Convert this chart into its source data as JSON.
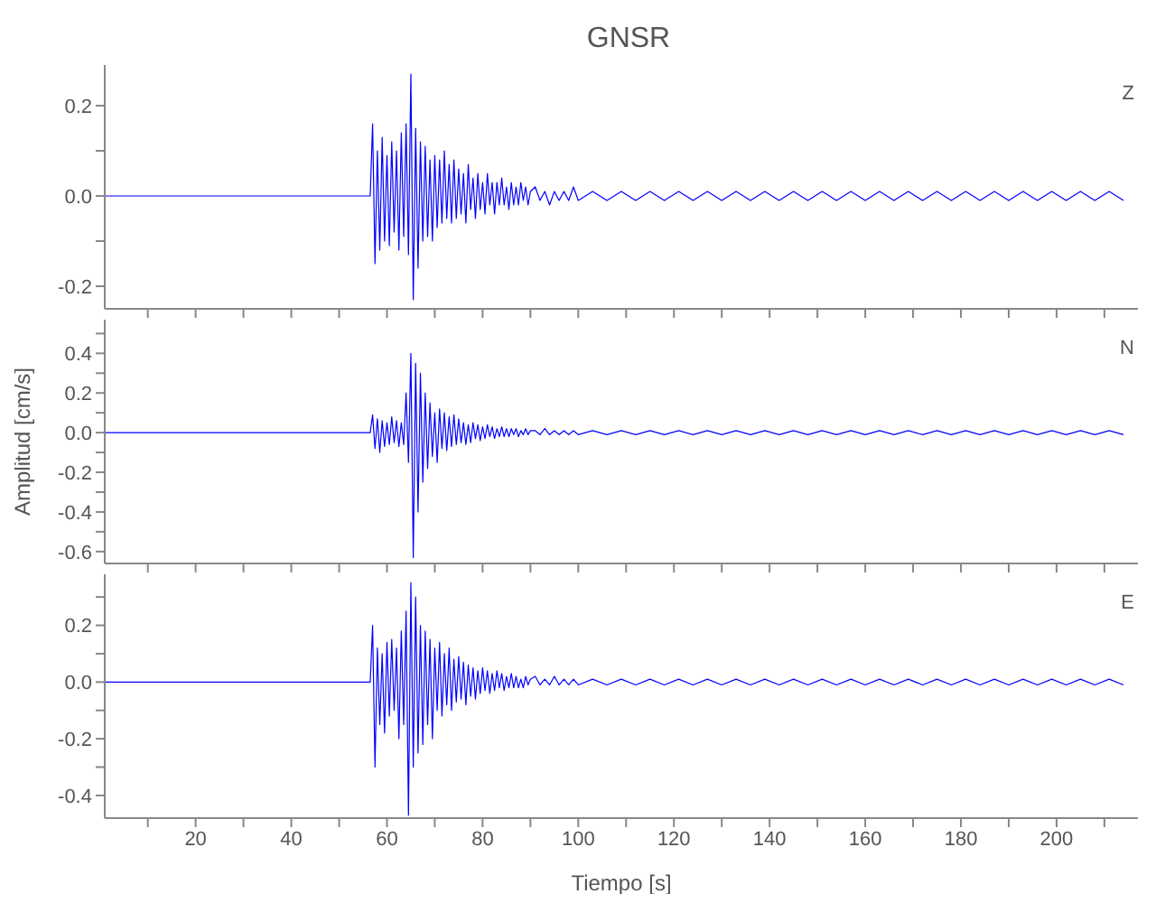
{
  "chart_data": [
    {
      "type": "line",
      "title": "GNSR",
      "annotations": [
        "Z"
      ],
      "tick_labels": "y",
      "marker": "none",
      "line_style": "solid",
      "x": [
        1,
        10,
        20,
        30,
        40,
        50,
        56.5,
        57,
        57.5,
        58,
        58.5,
        59,
        59.5,
        60,
        60.5,
        61,
        61.5,
        62,
        62.5,
        63,
        63.5,
        64,
        64.5,
        65,
        65.5,
        66,
        66.5,
        67,
        67.5,
        68,
        68.5,
        69,
        69.5,
        70,
        70.5,
        71,
        71.5,
        72,
        72.5,
        73,
        73.5,
        74,
        74.5,
        75,
        75.5,
        76,
        76.5,
        77,
        77.5,
        78,
        78.5,
        79,
        79.5,
        80,
        80.5,
        81,
        81.5,
        82,
        82.5,
        83,
        83.5,
        84,
        84.5,
        85,
        85.5,
        86,
        86.5,
        87,
        87.5,
        88,
        88.5,
        89,
        89.5,
        90,
        91,
        92,
        93,
        94,
        95,
        96,
        97,
        98,
        99,
        100,
        103,
        106,
        109,
        112,
        115,
        118,
        121,
        124,
        127,
        130,
        133,
        136,
        139,
        142,
        145,
        148,
        151,
        154,
        157,
        160,
        163,
        166,
        169,
        172,
        175,
        178,
        181,
        184,
        187,
        190,
        193,
        196,
        199,
        202,
        205,
        208,
        211,
        214
      ],
      "series": [
        {
          "color": "#0000ff",
          "values": [
            0,
            0,
            0,
            0,
            0,
            0,
            0,
            0.16,
            -0.15,
            0.1,
            -0.12,
            0.13,
            -0.1,
            0.09,
            -0.11,
            0.12,
            -0.08,
            0.1,
            -0.12,
            0.14,
            -0.09,
            0.16,
            -0.13,
            0.27,
            -0.23,
            0.15,
            -0.16,
            0.12,
            -0.1,
            0.11,
            -0.09,
            0.08,
            -0.1,
            0.09,
            -0.07,
            0.08,
            -0.06,
            0.1,
            -0.05,
            0.07,
            -0.06,
            0.08,
            -0.05,
            0.06,
            -0.04,
            0.05,
            -0.06,
            0.07,
            -0.03,
            0.04,
            -0.05,
            0.05,
            -0.03,
            0.03,
            -0.04,
            0.05,
            -0.02,
            0.03,
            -0.04,
            0.03,
            -0.02,
            0.04,
            -0.02,
            0.02,
            -0.03,
            0.03,
            -0.02,
            0.02,
            -0.02,
            0.03,
            -0.01,
            0.02,
            -0.02,
            0.01,
            0.02,
            -0.01,
            0.01,
            -0.02,
            0.01,
            -0.01,
            0.01,
            -0.01,
            0.02,
            -0.01,
            0.01,
            -0.01,
            0.01,
            -0.01,
            0.01,
            -0.01,
            0.01,
            -0.01,
            0.01,
            -0.01,
            0.01,
            -0.01,
            0.01,
            -0.01,
            0.01,
            -0.01,
            0.01,
            -0.01,
            0.01,
            -0.01,
            0.01,
            -0.01,
            0.01,
            -0.01,
            0.01,
            -0.01,
            0.01,
            -0.01,
            0.01,
            -0.01,
            0.01,
            -0.01,
            0.01,
            -0.01,
            0.01,
            -0.01,
            0.01,
            -0.01
          ]
        }
      ],
      "xlim": [
        1,
        217
      ],
      "xticks": [
        {
          "value": 10,
          "label": null
        },
        20,
        {
          "value": 30,
          "label": null
        },
        40,
        {
          "value": 50,
          "label": null
        },
        60,
        {
          "value": 70,
          "label": null
        },
        80,
        {
          "value": 90,
          "label": null
        },
        100,
        {
          "value": 110,
          "label": null
        },
        120,
        {
          "value": 130,
          "label": null
        },
        140,
        {
          "value": 150,
          "label": null
        },
        160,
        {
          "value": 170,
          "label": null
        },
        180,
        {
          "value": 190,
          "label": null
        },
        200,
        {
          "value": 210,
          "label": null
        }
      ],
      "ylim": [
        -0.25,
        0.29
      ],
      "yticks": [
        -0.2,
        {
          "value": -0.1,
          "label": null
        },
        {
          "value": 0,
          "label": "0.0"
        },
        {
          "value": 0.1,
          "label": null
        },
        0.2
      ]
    },
    {
      "type": "line",
      "ylabel": "Amplitud [cm/s]",
      "annotations": [
        "N"
      ],
      "tick_labels": "y",
      "marker": "none",
      "line_style": "solid",
      "x": [
        1,
        10,
        20,
        30,
        40,
        50,
        56.5,
        57,
        57.5,
        58,
        58.5,
        59,
        59.5,
        60,
        60.5,
        61,
        61.5,
        62,
        62.5,
        63,
        63.5,
        64,
        64.5,
        65,
        65.5,
        66,
        66.5,
        67,
        67.5,
        68,
        68.5,
        69,
        69.5,
        70,
        70.5,
        71,
        71.5,
        72,
        72.5,
        73,
        73.5,
        74,
        74.5,
        75,
        75.5,
        76,
        76.5,
        77,
        77.5,
        78,
        78.5,
        79,
        79.5,
        80,
        80.5,
        81,
        81.5,
        82,
        82.5,
        83,
        83.5,
        84,
        84.5,
        85,
        85.5,
        86,
        86.5,
        87,
        87.5,
        88,
        88.5,
        89,
        89.5,
        90,
        91,
        92,
        93,
        94,
        95,
        96,
        97,
        98,
        99,
        100,
        103,
        106,
        109,
        112,
        115,
        118,
        121,
        124,
        127,
        130,
        133,
        136,
        139,
        142,
        145,
        148,
        151,
        154,
        157,
        160,
        163,
        166,
        169,
        172,
        175,
        178,
        181,
        184,
        187,
        190,
        193,
        196,
        199,
        202,
        205,
        208,
        211,
        214
      ],
      "series": [
        {
          "color": "#0000ff",
          "values": [
            0,
            0,
            0,
            0,
            0,
            0,
            0,
            0.09,
            -0.08,
            0.07,
            -0.1,
            0.06,
            -0.07,
            0.05,
            -0.06,
            0.08,
            -0.05,
            0.06,
            -0.07,
            0.05,
            -0.06,
            0.2,
            -0.15,
            0.4,
            -0.63,
            0.35,
            -0.4,
            0.3,
            -0.25,
            0.2,
            -0.18,
            0.15,
            -0.12,
            0.1,
            -0.15,
            0.12,
            -0.08,
            0.1,
            -0.09,
            0.08,
            -0.07,
            0.09,
            -0.06,
            0.07,
            -0.05,
            0.05,
            -0.06,
            0.04,
            -0.05,
            0.05,
            -0.03,
            0.04,
            -0.04,
            0.03,
            -0.03,
            0.04,
            -0.02,
            0.03,
            -0.03,
            0.02,
            -0.02,
            0.03,
            -0.02,
            0.02,
            -0.02,
            0.02,
            -0.01,
            0.02,
            -0.02,
            0.01,
            -0.01,
            0.02,
            -0.01,
            0.01,
            0.01,
            -0.01,
            0.02,
            -0.01,
            0.01,
            -0.01,
            0.01,
            -0.01,
            0.01,
            -0.01,
            0.01,
            -0.01,
            0.01,
            -0.01,
            0.01,
            -0.01,
            0.01,
            -0.01,
            0.01,
            -0.01,
            0.01,
            -0.01,
            0.01,
            -0.01,
            0.01,
            -0.01,
            0.01,
            -0.01,
            0.01,
            -0.01,
            0.01,
            -0.01,
            0.01,
            -0.01,
            0.01,
            -0.01,
            0.01,
            -0.01,
            0.01,
            -0.01,
            0.01,
            -0.01,
            0.01,
            -0.01,
            0.01,
            -0.01,
            0.01,
            -0.01
          ]
        }
      ],
      "xlim": [
        1,
        217
      ],
      "xticks": [
        {
          "value": 10,
          "label": null
        },
        20,
        {
          "value": 30,
          "label": null
        },
        40,
        {
          "value": 50,
          "label": null
        },
        60,
        {
          "value": 70,
          "label": null
        },
        80,
        {
          "value": 90,
          "label": null
        },
        100,
        {
          "value": 110,
          "label": null
        },
        120,
        {
          "value": 130,
          "label": null
        },
        140,
        {
          "value": 150,
          "label": null
        },
        160,
        {
          "value": 170,
          "label": null
        },
        180,
        {
          "value": 190,
          "label": null
        },
        200,
        {
          "value": 210,
          "label": null
        }
      ],
      "ylim": [
        -0.66,
        0.57
      ],
      "yticks": [
        -0.6,
        {
          "value": -0.5,
          "label": null
        },
        -0.4,
        {
          "value": -0.3,
          "label": null
        },
        -0.2,
        {
          "value": -0.1,
          "label": null
        },
        {
          "value": 0,
          "label": "0.0"
        },
        {
          "value": 0.1,
          "label": null
        },
        0.2,
        {
          "value": 0.3,
          "label": null
        },
        0.4,
        {
          "value": 0.5,
          "label": null
        }
      ]
    },
    {
      "type": "line",
      "xlabel": "Tiempo [s]",
      "annotations": [
        "E"
      ],
      "marker": "none",
      "line_style": "solid",
      "x": [
        1,
        10,
        20,
        30,
        40,
        50,
        56.5,
        57,
        57.5,
        58,
        58.5,
        59,
        59.5,
        60,
        60.5,
        61,
        61.5,
        62,
        62.5,
        63,
        63.5,
        64,
        64.5,
        65,
        65.5,
        66,
        66.5,
        67,
        67.5,
        68,
        68.5,
        69,
        69.5,
        70,
        70.5,
        71,
        71.5,
        72,
        72.5,
        73,
        73.5,
        74,
        74.5,
        75,
        75.5,
        76,
        76.5,
        77,
        77.5,
        78,
        78.5,
        79,
        79.5,
        80,
        80.5,
        81,
        81.5,
        82,
        82.5,
        83,
        83.5,
        84,
        84.5,
        85,
        85.5,
        86,
        86.5,
        87,
        87.5,
        88,
        88.5,
        89,
        89.5,
        90,
        91,
        92,
        93,
        94,
        95,
        96,
        97,
        98,
        99,
        100,
        103,
        106,
        109,
        112,
        115,
        118,
        121,
        124,
        127,
        130,
        133,
        136,
        139,
        142,
        145,
        148,
        151,
        154,
        157,
        160,
        163,
        166,
        169,
        172,
        175,
        178,
        181,
        184,
        187,
        190,
        193,
        196,
        199,
        202,
        205,
        208,
        211,
        214
      ],
      "series": [
        {
          "color": "#0000ff",
          "values": [
            0,
            0,
            0,
            0,
            0,
            0,
            0,
            0.2,
            -0.3,
            0.12,
            -0.15,
            0.1,
            -0.18,
            0.14,
            -0.12,
            0.15,
            -0.1,
            0.12,
            -0.2,
            0.18,
            -0.15,
            0.25,
            -0.47,
            0.35,
            -0.3,
            0.3,
            -0.25,
            0.2,
            -0.22,
            0.18,
            -0.15,
            0.15,
            -0.2,
            0.12,
            -0.1,
            0.14,
            -0.12,
            0.1,
            -0.08,
            0.12,
            -0.1,
            0.08,
            -0.07,
            0.09,
            -0.06,
            0.07,
            -0.08,
            0.06,
            -0.05,
            0.05,
            -0.06,
            0.04,
            -0.04,
            0.05,
            -0.03,
            0.04,
            -0.04,
            0.03,
            -0.03,
            0.04,
            -0.02,
            0.03,
            -0.03,
            0.02,
            -0.02,
            0.03,
            -0.02,
            0.02,
            -0.02,
            0.01,
            -0.02,
            0.02,
            -0.01,
            0.01,
            0.02,
            -0.01,
            0.01,
            -0.01,
            0.02,
            -0.01,
            0.01,
            -0.01,
            0.01,
            -0.01,
            0.01,
            -0.01,
            0.01,
            -0.01,
            0.01,
            -0.01,
            0.01,
            -0.01,
            0.01,
            -0.01,
            0.01,
            -0.01,
            0.01,
            -0.01,
            0.01,
            -0.01,
            0.01,
            -0.01,
            0.01,
            -0.01,
            0.01,
            -0.01,
            0.01,
            -0.01,
            0.01,
            -0.01,
            0.01,
            -0.01,
            0.01,
            -0.01,
            0.01,
            -0.01,
            0.01,
            -0.01,
            0.01,
            -0.01,
            0.01,
            -0.01
          ]
        }
      ],
      "xlim": [
        1,
        217
      ],
      "xticks": [
        {
          "value": 10,
          "label": null
        },
        20,
        {
          "value": 30,
          "label": null
        },
        40,
        {
          "value": 50,
          "label": null
        },
        60,
        {
          "value": 70,
          "label": null
        },
        80,
        {
          "value": 90,
          "label": null
        },
        100,
        {
          "value": 110,
          "label": null
        },
        120,
        {
          "value": 130,
          "label": null
        },
        140,
        {
          "value": 150,
          "label": null
        },
        160,
        {
          "value": 170,
          "label": null
        },
        180,
        {
          "value": 190,
          "label": null
        },
        200,
        {
          "value": 210,
          "label": null
        }
      ],
      "ylim": [
        -0.48,
        0.38
      ],
      "yticks": [
        -0.4,
        {
          "value": -0.3,
          "label": null
        },
        -0.2,
        {
          "value": -0.1,
          "label": null
        },
        {
          "value": 0,
          "label": "0.0"
        },
        {
          "value": 0.1,
          "label": null
        },
        0.2,
        {
          "value": 0.3,
          "label": null
        }
      ]
    }
  ]
}
